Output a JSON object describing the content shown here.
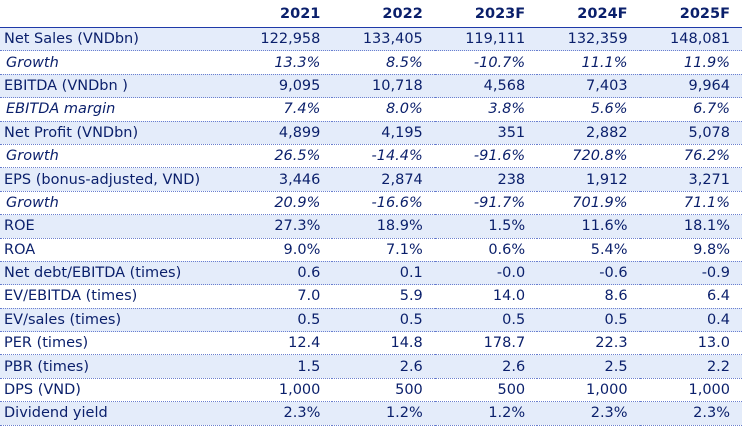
{
  "table": {
    "headers": [
      "",
      "2021",
      "2022",
      "2023F",
      "2024F",
      "2025F"
    ],
    "rows": [
      {
        "label": "Net Sales (VNDbn)",
        "values": [
          "122,958",
          "133,405",
          "119,111",
          "132,359",
          "148,081"
        ],
        "italic": false,
        "shaded": true
      },
      {
        "label": "Growth",
        "values": [
          "13.3%",
          "8.5%",
          "-10.7%",
          "11.1%",
          "11.9%"
        ],
        "italic": true,
        "shaded": false
      },
      {
        "label": "EBITDA (VNDbn )",
        "values": [
          "9,095",
          "10,718",
          "4,568",
          "7,403",
          "9,964"
        ],
        "italic": false,
        "shaded": true
      },
      {
        "label": "EBITDA margin",
        "values": [
          "7.4%",
          "8.0%",
          "3.8%",
          "5.6%",
          "6.7%"
        ],
        "italic": true,
        "shaded": false
      },
      {
        "label": "Net Profit (VNDbn)",
        "values": [
          "4,899",
          "4,195",
          "351",
          "2,882",
          "5,078"
        ],
        "italic": false,
        "shaded": true
      },
      {
        "label": "Growth",
        "values": [
          "26.5%",
          "-14.4%",
          "-91.6%",
          "720.8%",
          "76.2%"
        ],
        "italic": true,
        "shaded": false
      },
      {
        "label": "EPS (bonus-adjusted, VND)",
        "values": [
          "3,446",
          "2,874",
          "238",
          "1,912",
          "3,271"
        ],
        "italic": false,
        "shaded": true
      },
      {
        "label": "Growth",
        "values": [
          "20.9%",
          "-16.6%",
          "-91.7%",
          "701.9%",
          "71.1%"
        ],
        "italic": true,
        "shaded": false
      },
      {
        "label": "ROE",
        "values": [
          "27.3%",
          "18.9%",
          "1.5%",
          "11.6%",
          "18.1%"
        ],
        "italic": false,
        "shaded": true
      },
      {
        "label": "ROA",
        "values": [
          "9.0%",
          "7.1%",
          "0.6%",
          "5.4%",
          "9.8%"
        ],
        "italic": false,
        "shaded": false
      },
      {
        "label": "Net debt/EBITDA (times)",
        "values": [
          "0.6",
          "0.1",
          "-0.0",
          "-0.6",
          "-0.9"
        ],
        "italic": false,
        "shaded": true
      },
      {
        "label": "EV/EBITDA (times)",
        "values": [
          "7.0",
          "5.9",
          "14.0",
          "8.6",
          "6.4"
        ],
        "italic": false,
        "shaded": false
      },
      {
        "label": "EV/sales (times)",
        "values": [
          "0.5",
          "0.5",
          "0.5",
          "0.5",
          "0.4"
        ],
        "italic": false,
        "shaded": true
      },
      {
        "label": "PER (times)",
        "values": [
          "12.4",
          "14.8",
          "178.7",
          "22.3",
          "13.0"
        ],
        "italic": false,
        "shaded": false
      },
      {
        "label": "PBR (times)",
        "values": [
          "1.5",
          "2.6",
          "2.6",
          "2.5",
          "2.2"
        ],
        "italic": false,
        "shaded": true
      },
      {
        "label": "DPS (VND)",
        "values": [
          "1,000",
          "500",
          "500",
          "1,000",
          "1,000"
        ],
        "italic": false,
        "shaded": false
      },
      {
        "label": "Dividend yield",
        "values": [
          "2.3%",
          "1.2%",
          "1.2%",
          "2.3%",
          "2.3%"
        ],
        "italic": false,
        "shaded": true
      }
    ]
  },
  "colors": {
    "text": "#0a1f6b",
    "row_shade": "#e4ecfa",
    "rule": "#1f3aa8"
  }
}
